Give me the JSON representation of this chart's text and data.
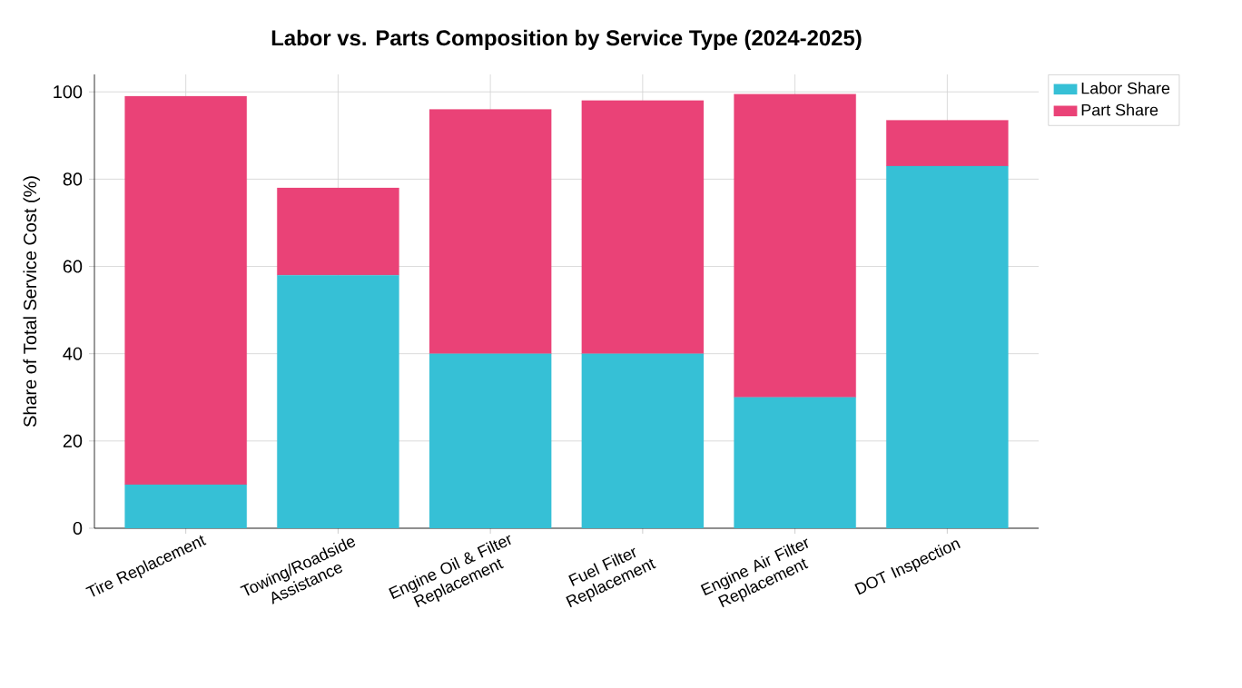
{
  "chart_data": {
    "type": "bar",
    "stacked": true,
    "title": "Labor vs. Parts Composition by Service Type (2024-2025)",
    "ylabel": "Share of Total Service Cost (%)",
    "categories": [
      "Tire Replacement",
      "Towing/Roadside Assistance",
      "Engine Oil & Filter Replacement",
      "Fuel Filter Replacement",
      "Engine Air Filter Replacement",
      "DOT Inspection"
    ],
    "series": [
      {
        "name": "Labor Share",
        "color": "#36c0d6",
        "values": [
          10,
          58,
          40,
          40,
          30,
          83
        ]
      },
      {
        "name": "Part Share",
        "color": "#ea4277",
        "values": [
          89,
          20,
          56,
          58,
          69.5,
          10.5
        ]
      }
    ],
    "ylim": [
      0,
      104
    ],
    "yticks": [
      0,
      20,
      40,
      60,
      80,
      100
    ],
    "grid": true,
    "legend": "top right"
  }
}
